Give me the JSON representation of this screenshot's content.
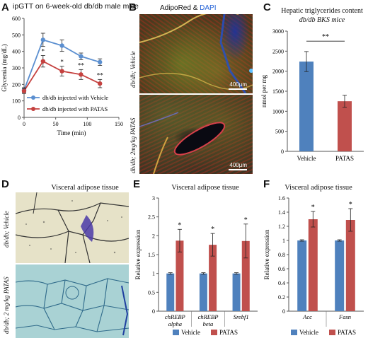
{
  "panels": {
    "A": {
      "letter": "A",
      "title": "ipGTT on 6-week-old db/db male mice"
    },
    "B": {
      "letter": "B",
      "title_adipo": "AdipoRed & ",
      "title_dapi": "DAPI",
      "label_top": "db/db; Vehicle",
      "label_bottom": "db/db; 2mg/kg PATAS",
      "scale_top": "400μm",
      "scale_bottom": "400μm"
    },
    "C": {
      "letter": "C",
      "title1": "Hepatic triglycerides content",
      "title2": "db/db BKS mice"
    },
    "D": {
      "letter": "D",
      "title": "Visceral adipose tissue",
      "label_top": "db/db; Vehicle",
      "label_bottom": "db/db; 2 mg/kg PATAS"
    },
    "E": {
      "letter": "E",
      "title": "Visceral adipose tissue"
    },
    "F": {
      "letter": "F",
      "title": "Visceral adipose tissue"
    }
  },
  "colors": {
    "blue": "#4f81bd",
    "red": "#c0504d",
    "vehicle_line": "#5b8fd0",
    "patas_line": "#c5413f"
  },
  "chart_data": [
    {
      "id": "A",
      "type": "line",
      "title": "ipGTT on 6-week-old db/db male mice",
      "xlabel": "Time (min)",
      "ylabel": "Glycemia (mg/dL)",
      "xlim": [
        0,
        150
      ],
      "ylim": [
        0,
        600
      ],
      "xticks": [
        0,
        50,
        100,
        150
      ],
      "yticks": [
        0,
        100,
        200,
        300,
        400,
        500,
        600
      ],
      "x": [
        0,
        30,
        60,
        90,
        120
      ],
      "series": [
        {
          "name": "db/db injected with Vehicle",
          "values": [
            165,
            470,
            435,
            370,
            335
          ],
          "err": [
            15,
            40,
            35,
            20,
            20
          ],
          "sig": [
            "",
            "",
            "",
            "",
            ""
          ]
        },
        {
          "name": "db/db injected with PATAS",
          "values": [
            160,
            340,
            280,
            260,
            205
          ],
          "err": [
            15,
            35,
            30,
            30,
            25
          ],
          "sig": [
            "",
            "*",
            "*",
            "**",
            "**"
          ]
        }
      ],
      "legend": "bottom-right"
    },
    {
      "id": "C",
      "type": "bar",
      "title": "Hepatic triglycerides content db/db BKS mice",
      "ylabel": "nmol per mg",
      "ylim": [
        0,
        3000
      ],
      "yticks": [
        0,
        500,
        1000,
        1500,
        2000,
        2500,
        3000
      ],
      "categories": [
        "Vehicle",
        "PATAS"
      ],
      "values": [
        2240,
        1250
      ],
      "err": [
        250,
        150
      ],
      "significance": "**"
    },
    {
      "id": "E",
      "type": "bar",
      "title": "Visceral adipose tissue",
      "ylabel": "Relative expression",
      "ylim": [
        0,
        3
      ],
      "yticks": [
        0,
        0.5,
        1,
        1.5,
        2,
        2.5,
        3
      ],
      "categories": [
        [
          "chREBP",
          "alpha"
        ],
        [
          "chREBP",
          "beta"
        ],
        [
          "Srebf1"
        ]
      ],
      "series": [
        {
          "name": "Vehicle",
          "values": [
            1.0,
            1.0,
            1.0
          ],
          "err": [
            0.02,
            0.02,
            0.02
          ]
        },
        {
          "name": "PATAS",
          "values": [
            1.87,
            1.76,
            1.86
          ],
          "err": [
            0.3,
            0.3,
            0.45
          ]
        }
      ],
      "significance": [
        "*",
        "*",
        "*"
      ],
      "legend": "bottom"
    },
    {
      "id": "F",
      "type": "bar",
      "title": "Visceral adipose tissue",
      "ylabel": "Relative expression",
      "ylim": [
        0,
        1.6
      ],
      "yticks": [
        0,
        0.2,
        0.4,
        0.6,
        0.8,
        1,
        1.2,
        1.4,
        1.6
      ],
      "categories": [
        [
          "Acc"
        ],
        [
          "Fasn"
        ]
      ],
      "series": [
        {
          "name": "Vehicle",
          "values": [
            1.0,
            1.0
          ],
          "err": [
            0.01,
            0.01
          ]
        },
        {
          "name": "PATAS",
          "values": [
            1.3,
            1.29
          ],
          "err": [
            0.11,
            0.16
          ]
        }
      ],
      "significance": [
        "*",
        "*"
      ],
      "legend": "bottom"
    }
  ]
}
